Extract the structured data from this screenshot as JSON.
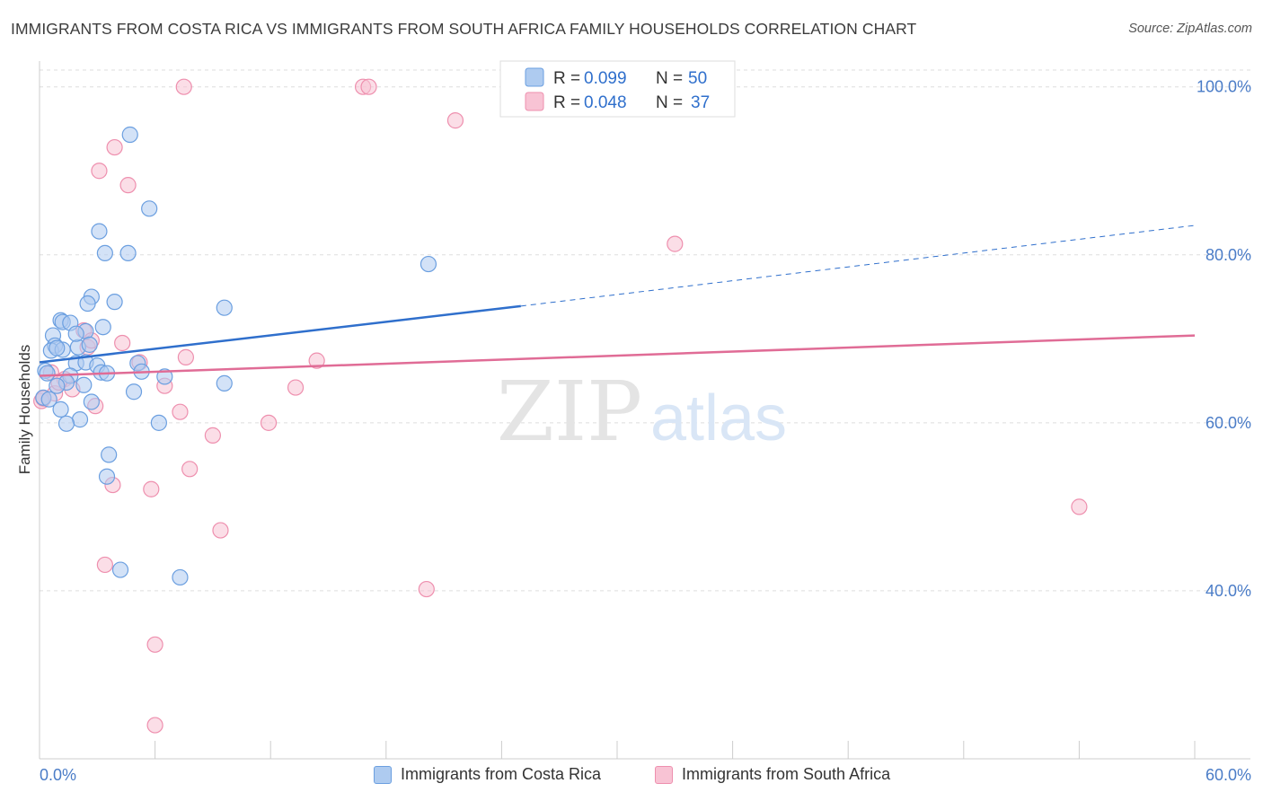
{
  "header": {
    "title": "IMMIGRANTS FROM COSTA RICA VS IMMIGRANTS FROM SOUTH AFRICA FAMILY HOUSEHOLDS CORRELATION CHART",
    "source": "Source: ZipAtlas.com"
  },
  "watermark": {
    "zip": "ZIP",
    "atlas": "atlas"
  },
  "colors": {
    "blue": "#6b9fe0",
    "blue_fill": "#aecbf0",
    "blue_line": "#2f6fcc",
    "pink": "#ee8fae",
    "pink_fill": "#f8c3d4",
    "pink_line": "#e06c96",
    "axis_label": "#4a7cc7",
    "grid": "#dddddd"
  },
  "legend_top": {
    "rows": [
      {
        "r_label": "R = ",
        "r_value": "0.099",
        "n_label": "N = ",
        "n_value": "50",
        "color": "blue"
      },
      {
        "r_label": "R = ",
        "r_value": "0.048",
        "n_label": "N = ",
        "n_value": "37",
        "color": "pink"
      }
    ]
  },
  "legend_bottom": {
    "items": [
      {
        "label": "Immigrants from Costa Rica",
        "color": "blue"
      },
      {
        "label": "Immigrants from South Africa",
        "color": "pink"
      }
    ]
  },
  "chart_data": {
    "type": "scatter",
    "title": "IMMIGRANTS FROM COSTA RICA VS IMMIGRANTS FROM SOUTH AFRICA FAMILY HOUSEHOLDS CORRELATION CHART",
    "xlabel": "",
    "ylabel": "Family Households",
    "xlim": [
      0,
      60
    ],
    "ylim": [
      20,
      102
    ],
    "x_tick_labels": [
      {
        "value": 0,
        "label": "0.0%"
      },
      {
        "value": 60,
        "label": "60.0%"
      }
    ],
    "y_tick_labels": [
      {
        "value": 100,
        "label": "100.0%"
      },
      {
        "value": 80,
        "label": "80.0%"
      },
      {
        "value": 60,
        "label": "60.0%"
      },
      {
        "value": 40,
        "label": "40.0%"
      }
    ],
    "x_minor_ticks": [
      0,
      6,
      12,
      18,
      24,
      30,
      36,
      42,
      48,
      54,
      60
    ],
    "grid": true,
    "legend_position": "top-center",
    "series": [
      {
        "name": "Immigrants from Costa Rica",
        "color": "blue",
        "points": [
          [
            4.7,
            94.3
          ],
          [
            5.7,
            85.5
          ],
          [
            3.1,
            82.8
          ],
          [
            3.4,
            80.2
          ],
          [
            4.6,
            80.2
          ],
          [
            20.2,
            78.9
          ],
          [
            2.7,
            75.0
          ],
          [
            2.5,
            74.2
          ],
          [
            3.9,
            74.4
          ],
          [
            9.6,
            73.7
          ],
          [
            1.1,
            72.2
          ],
          [
            1.2,
            72.0
          ],
          [
            1.6,
            71.9
          ],
          [
            3.3,
            71.4
          ],
          [
            0.7,
            70.4
          ],
          [
            2.4,
            70.9
          ],
          [
            0.8,
            69.2
          ],
          [
            2.0,
            69.0
          ],
          [
            2.6,
            69.3
          ],
          [
            0.6,
            68.6
          ],
          [
            1.2,
            68.7
          ],
          [
            1.9,
            67.1
          ],
          [
            2.4,
            67.2
          ],
          [
            3.0,
            66.8
          ],
          [
            5.1,
            67.1
          ],
          [
            0.3,
            66.2
          ],
          [
            0.4,
            65.9
          ],
          [
            3.2,
            66.0
          ],
          [
            3.5,
            65.9
          ],
          [
            5.3,
            66.1
          ],
          [
            1.6,
            65.6
          ],
          [
            6.5,
            65.5
          ],
          [
            1.4,
            64.8
          ],
          [
            9.6,
            64.7
          ],
          [
            0.9,
            64.4
          ],
          [
            4.9,
            63.7
          ],
          [
            2.7,
            62.5
          ],
          [
            1.1,
            61.6
          ],
          [
            2.1,
            60.4
          ],
          [
            1.4,
            59.9
          ],
          [
            6.2,
            60.0
          ],
          [
            3.6,
            56.2
          ],
          [
            3.5,
            53.6
          ],
          [
            4.2,
            42.5
          ],
          [
            7.3,
            41.6
          ],
          [
            0.2,
            63.0
          ],
          [
            0.5,
            62.8
          ],
          [
            2.3,
            64.5
          ],
          [
            1.9,
            70.6
          ],
          [
            0.9,
            68.9
          ]
        ]
      },
      {
        "name": "Immigrants from South Africa",
        "color": "pink",
        "points": [
          [
            7.5,
            100.0
          ],
          [
            16.8,
            100.0
          ],
          [
            17.1,
            100.0
          ],
          [
            21.6,
            96.0
          ],
          [
            3.9,
            92.8
          ],
          [
            3.1,
            90.0
          ],
          [
            4.6,
            88.3
          ],
          [
            33.0,
            81.3
          ],
          [
            2.3,
            71.0
          ],
          [
            4.3,
            69.5
          ],
          [
            2.5,
            69.0
          ],
          [
            7.6,
            67.8
          ],
          [
            14.4,
            67.4
          ],
          [
            5.2,
            67.2
          ],
          [
            0.6,
            66.0
          ],
          [
            1.3,
            65.2
          ],
          [
            6.5,
            64.4
          ],
          [
            13.3,
            64.2
          ],
          [
            1.7,
            64.0
          ],
          [
            0.8,
            63.5
          ],
          [
            0.1,
            62.6
          ],
          [
            2.9,
            62.0
          ],
          [
            7.3,
            61.3
          ],
          [
            11.9,
            60.0
          ],
          [
            9.0,
            58.5
          ],
          [
            7.8,
            54.5
          ],
          [
            3.8,
            52.6
          ],
          [
            5.8,
            52.1
          ],
          [
            54.0,
            50.0
          ],
          [
            9.4,
            47.2
          ],
          [
            3.4,
            43.1
          ],
          [
            20.1,
            40.2
          ],
          [
            6.0,
            33.6
          ],
          [
            6.0,
            24.0
          ],
          [
            0.2,
            62.9
          ],
          [
            2.7,
            69.8
          ],
          [
            1.0,
            64.8
          ]
        ]
      }
    ],
    "trend_lines": [
      {
        "series": "Immigrants from Costa Rica",
        "x_start": 0,
        "y_start": 67.2,
        "x_solid_end": 25,
        "y_solid_end": 73.9,
        "x_end": 60,
        "y_end": 83.5,
        "dashed_after_solid": true
      },
      {
        "series": "Immigrants from South Africa",
        "x_start": 0,
        "y_start": 65.6,
        "x_end": 60,
        "y_end": 70.4,
        "dashed_after_solid": false
      }
    ]
  }
}
